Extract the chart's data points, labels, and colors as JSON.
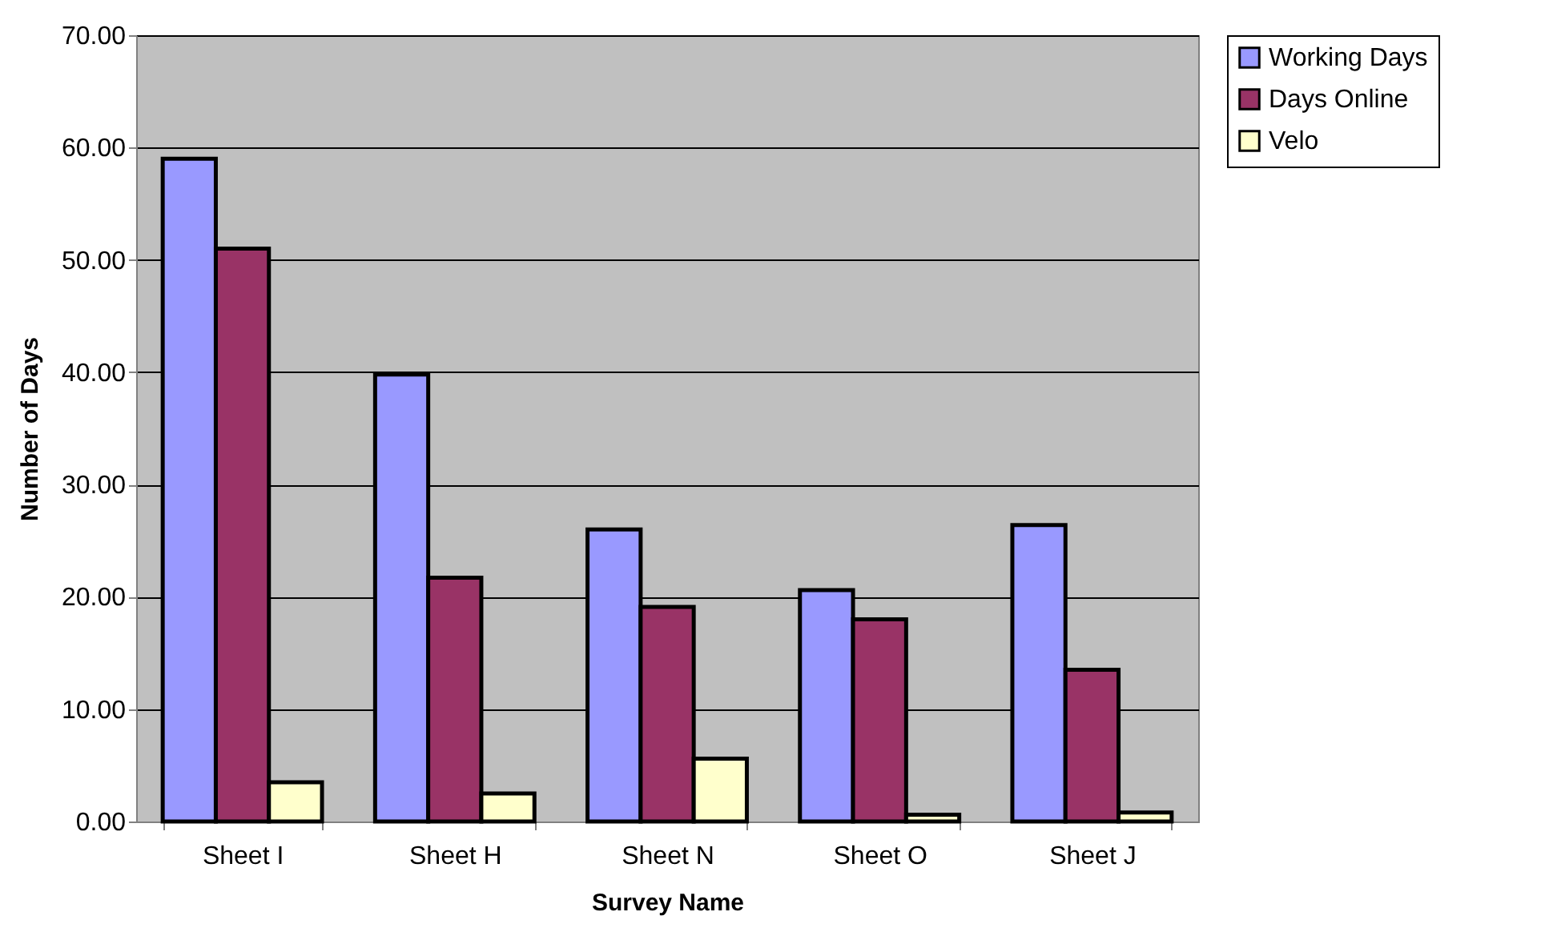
{
  "chart_data": {
    "type": "bar",
    "xlabel": "Survey Name",
    "ylabel": "Number of Days",
    "categories": [
      "Sheet I",
      "Sheet H",
      "Sheet N",
      "Sheet O",
      "Sheet J"
    ],
    "series": [
      {
        "name": "Working Days",
        "color": "#9999ff",
        "values": [
          59,
          39.8,
          26,
          20.6,
          26.4
        ]
      },
      {
        "name": "Days Online",
        "color": "#993366",
        "values": [
          51,
          21.7,
          19.1,
          18,
          13.5
        ]
      },
      {
        "name": "Velo",
        "color": "#ffffcc",
        "values": [
          3.5,
          2.5,
          5.6,
          0.6,
          0.8
        ]
      }
    ],
    "ylim": [
      0,
      70
    ],
    "yticks": [
      {
        "value": 0,
        "label": "0.00"
      },
      {
        "value": 10,
        "label": "10.00"
      },
      {
        "value": 20,
        "label": "20.00"
      },
      {
        "value": 30,
        "label": "30.00"
      },
      {
        "value": 40,
        "label": "40.00"
      },
      {
        "value": 50,
        "label": "50.00"
      },
      {
        "value": 60,
        "label": "60.00"
      },
      {
        "value": 70,
        "label": "70.00"
      }
    ],
    "grid": "y",
    "legend": "right"
  }
}
